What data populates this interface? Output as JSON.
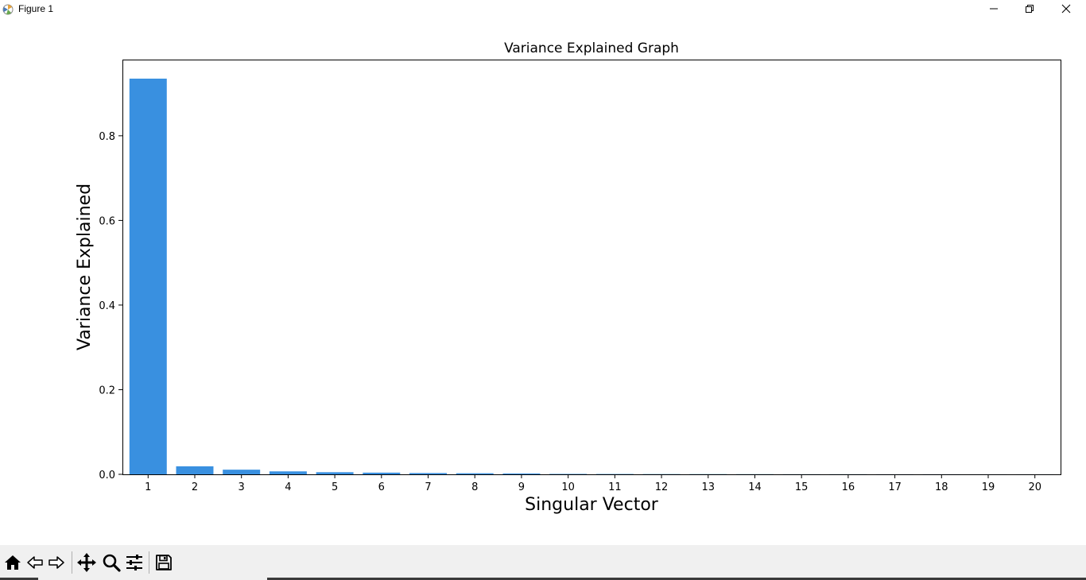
{
  "window": {
    "title": "Figure 1",
    "minimize_icon": "minimize-icon",
    "maximize_icon": "restore-icon",
    "close_icon": "close-icon"
  },
  "chart_data": {
    "type": "bar",
    "title": "Variance Explained Graph",
    "xlabel": "Singular Vector",
    "ylabel": "Variance Explained",
    "categories": [
      "1",
      "2",
      "3",
      "4",
      "5",
      "6",
      "7",
      "8",
      "9",
      "10",
      "11",
      "12",
      "13",
      "14",
      "15",
      "16",
      "17",
      "18",
      "19",
      "20"
    ],
    "values": [
      0.935,
      0.019,
      0.011,
      0.007,
      0.005,
      0.004,
      0.003,
      0.0025,
      0.002,
      0.001,
      0.0008,
      0.0006,
      0.0005,
      0.0004,
      0.0003,
      0.0003,
      0.0002,
      0.0002,
      0.0001,
      0.0001
    ],
    "yticks": [
      0.0,
      0.2,
      0.4,
      0.6,
      0.8
    ],
    "ytick_labels": [
      "0.0",
      "0.2",
      "0.4",
      "0.6",
      "0.8"
    ],
    "ylim": [
      0,
      0.98
    ],
    "grid": false,
    "bar_color": "#3990e0"
  },
  "toolbar": {
    "items": [
      {
        "name": "home-icon"
      },
      {
        "name": "back-icon"
      },
      {
        "name": "forward-icon"
      },
      {
        "name": "pan-icon"
      },
      {
        "name": "zoom-icon"
      },
      {
        "name": "configure-subplots-icon"
      },
      {
        "name": "save-icon"
      }
    ]
  }
}
